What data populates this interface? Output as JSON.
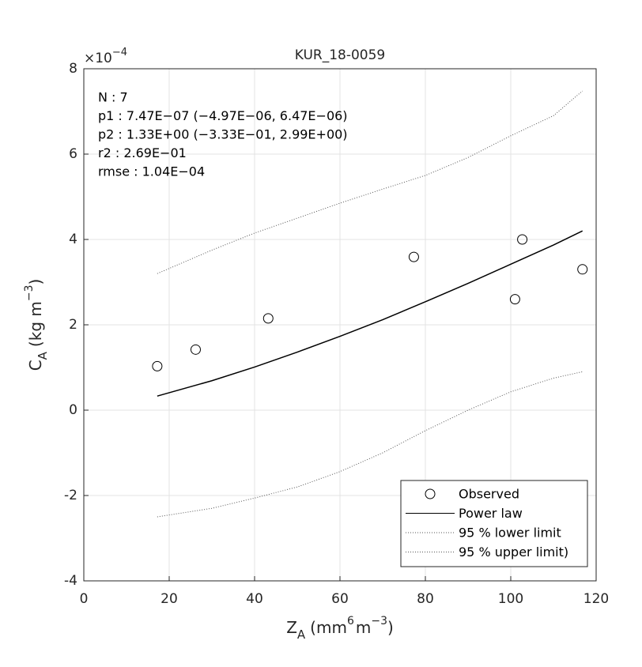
{
  "chart_data": {
    "type": "scatter",
    "title": "KUR_18-0059",
    "xlabel_parts": [
      "Z",
      "A",
      "(mm",
      "6",
      "m",
      "−3",
      ")"
    ],
    "ylabel_parts": [
      "C",
      "A",
      "(kg m",
      "−3",
      ")"
    ],
    "y_exponent_parts": [
      "×10",
      "−4"
    ],
    "annotations": [
      "N    : 7",
      "p1   : 7.47E−07 (−4.97E−06, 6.47E−06)",
      "p2   : 1.33E+00 (−3.33E−01, 2.99E+00)",
      "r2   : 2.69E−01",
      "rmse : 1.04E−04"
    ],
    "xlim": [
      0,
      120
    ],
    "ylim": [
      -4,
      8
    ],
    "xticks": [
      0,
      20,
      40,
      60,
      80,
      100,
      120
    ],
    "yticks": [
      -4,
      -2,
      0,
      2,
      4,
      6,
      8
    ],
    "grid": true,
    "legend": "lower right",
    "scatter": {
      "name": "Observed",
      "color": "#000000",
      "x": [
        17.2,
        26.2,
        43.2,
        77.3,
        101,
        102.7,
        116.8
      ],
      "values": [
        1.03,
        1.42,
        2.15,
        3.59,
        2.6,
        4.0,
        3.3
      ]
    },
    "series": [
      {
        "name": "Power law",
        "color": "#000000",
        "style": "solid",
        "x": [
          17.2,
          30,
          40,
          50,
          60,
          70,
          80,
          90,
          100,
          110,
          116.8
        ],
        "values": [
          0.33,
          0.69,
          1.01,
          1.36,
          1.73,
          2.12,
          2.54,
          2.97,
          3.42,
          3.87,
          4.2
        ]
      },
      {
        "name": "95 % lower limit",
        "color": "#555555",
        "style": "dotted",
        "x": [
          17.2,
          30,
          40,
          50,
          60,
          70,
          80,
          90,
          100,
          110,
          116.8
        ],
        "values": [
          -2.5,
          -2.3,
          -2.06,
          -1.8,
          -1.44,
          -1.0,
          -0.48,
          0.0,
          0.43,
          0.75,
          0.9
        ]
      },
      {
        "name": "95 % upper limit)",
        "color": "#555555",
        "style": "dotted",
        "x": [
          17.2,
          30,
          40,
          50,
          60,
          70,
          80,
          90,
          100,
          110,
          116.8
        ],
        "values": [
          3.2,
          3.75,
          4.15,
          4.5,
          4.85,
          5.18,
          5.5,
          5.92,
          6.43,
          6.9,
          7.48
        ]
      }
    ]
  }
}
